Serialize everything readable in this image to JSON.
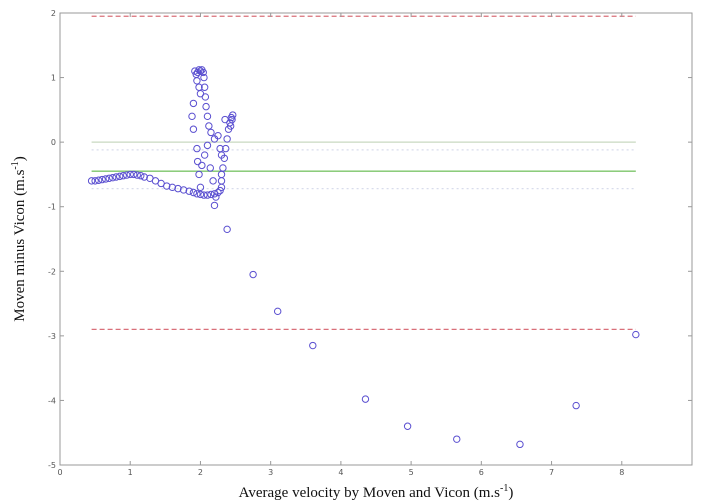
{
  "chart_data": {
    "type": "scatter",
    "title": "",
    "xlabel": "Average velocity by Moven and Vicon (m.s",
    "xlabel_sup": "-1",
    "xlabel_end": ")",
    "ylabel": "Moven minus Vicon (m.s",
    "ylabel_sup": "-1",
    "ylabel_end": ")",
    "xlim": [
      0,
      9
    ],
    "ylim": [
      -5,
      2
    ],
    "xticks": [
      "0",
      "1",
      "2",
      "3",
      "4",
      "5",
      "6",
      "7",
      "8"
    ],
    "yticks": [
      "2",
      "1",
      "0",
      "-1",
      "-2",
      "-3",
      "-4",
      "-5"
    ],
    "grid": false,
    "marker_color": "#5a4fd0",
    "reference_lines": [
      {
        "y": 1.95,
        "color": "#d9707a",
        "style": "dashed"
      },
      {
        "y": -2.9,
        "color": "#d9707a",
        "style": "dashed"
      },
      {
        "y": 0.0,
        "color": "#c8d8c0",
        "style": "solid"
      },
      {
        "y": -0.45,
        "color": "#7cc46a",
        "style": "solid"
      },
      {
        "y": -0.12,
        "color": "#d8dcec",
        "style": "dotted"
      },
      {
        "y": -0.72,
        "color": "#d8dcec",
        "style": "dotted"
      }
    ],
    "points": [
      [
        0.45,
        -0.6
      ],
      [
        0.5,
        -0.6
      ],
      [
        0.55,
        -0.59
      ],
      [
        0.6,
        -0.58
      ],
      [
        0.65,
        -0.57
      ],
      [
        0.7,
        -0.56
      ],
      [
        0.75,
        -0.55
      ],
      [
        0.8,
        -0.54
      ],
      [
        0.85,
        -0.53
      ],
      [
        0.9,
        -0.52
      ],
      [
        0.95,
        -0.51
      ],
      [
        1.0,
        -0.5
      ],
      [
        1.05,
        -0.5
      ],
      [
        1.1,
        -0.51
      ],
      [
        1.15,
        -0.52
      ],
      [
        1.2,
        -0.54
      ],
      [
        1.28,
        -0.56
      ],
      [
        1.36,
        -0.6
      ],
      [
        1.44,
        -0.64
      ],
      [
        1.52,
        -0.68
      ],
      [
        1.6,
        -0.7
      ],
      [
        1.68,
        -0.72
      ],
      [
        1.76,
        -0.74
      ],
      [
        1.84,
        -0.76
      ],
      [
        1.9,
        -0.78
      ],
      [
        1.95,
        -0.8
      ],
      [
        2.0,
        -0.81
      ],
      [
        2.05,
        -0.82
      ],
      [
        2.1,
        -0.82
      ],
      [
        2.15,
        -0.81
      ],
      [
        2.2,
        -0.8
      ],
      [
        2.25,
        -0.78
      ],
      [
        2.28,
        -0.75
      ],
      [
        2.3,
        -0.7
      ],
      [
        2.3,
        -0.6
      ],
      [
        2.3,
        -0.5
      ],
      [
        2.32,
        -0.4
      ],
      [
        2.34,
        -0.25
      ],
      [
        2.36,
        -0.1
      ],
      [
        2.38,
        0.05
      ],
      [
        2.4,
        0.2
      ],
      [
        2.42,
        0.3
      ],
      [
        2.44,
        0.38
      ],
      [
        2.46,
        0.42
      ],
      [
        2.45,
        0.35
      ],
      [
        2.43,
        0.25
      ],
      [
        2.35,
        0.35
      ],
      [
        2.3,
        -0.2
      ],
      [
        2.28,
        -0.1
      ],
      [
        2.25,
        0.1
      ],
      [
        2.2,
        0.05
      ],
      [
        2.15,
        0.15
      ],
      [
        2.12,
        0.25
      ],
      [
        2.1,
        0.4
      ],
      [
        2.08,
        0.55
      ],
      [
        2.07,
        0.7
      ],
      [
        2.06,
        0.85
      ],
      [
        2.05,
        1.0
      ],
      [
        2.04,
        1.08
      ],
      [
        2.02,
        1.12
      ],
      [
        2.0,
        1.1
      ],
      [
        1.98,
        1.12
      ],
      [
        1.96,
        1.08
      ],
      [
        1.94,
        1.05
      ],
      [
        1.92,
        1.1
      ],
      [
        1.95,
        0.95
      ],
      [
        1.98,
        0.85
      ],
      [
        2.0,
        0.75
      ],
      [
        1.9,
        0.6
      ],
      [
        1.88,
        0.4
      ],
      [
        1.9,
        0.2
      ],
      [
        1.95,
        -0.1
      ],
      [
        1.96,
        -0.3
      ],
      [
        1.98,
        -0.5
      ],
      [
        2.0,
        -0.7
      ],
      [
        2.02,
        -0.36
      ],
      [
        2.06,
        -0.2
      ],
      [
        2.1,
        -0.05
      ],
      [
        2.14,
        -0.4
      ],
      [
        2.18,
        -0.6
      ],
      [
        2.22,
        -0.85
      ],
      [
        2.2,
        -0.98
      ],
      [
        2.38,
        -1.35
      ],
      [
        2.75,
        -2.05
      ],
      [
        3.1,
        -2.62
      ],
      [
        3.6,
        -3.15
      ],
      [
        4.35,
        -3.98
      ],
      [
        4.95,
        -4.4
      ],
      [
        5.65,
        -4.6
      ],
      [
        6.55,
        -4.68
      ],
      [
        7.35,
        -4.08
      ],
      [
        8.2,
        -2.98
      ]
    ]
  }
}
